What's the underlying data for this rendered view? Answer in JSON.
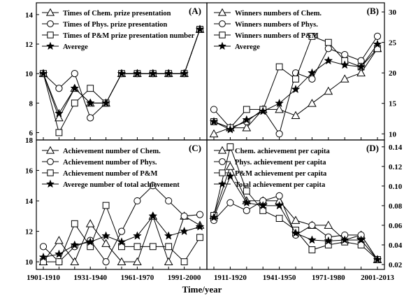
{
  "xlabel": "Time/year",
  "chart_data": [
    {
      "type": "line",
      "panel": "(A)",
      "x": [
        1,
        2,
        3,
        4,
        5,
        6,
        7,
        8,
        9,
        10,
        11
      ],
      "ylim": [
        5.5,
        14.8
      ],
      "yticks": [
        6,
        8,
        10,
        12,
        14
      ],
      "y_axis_side": "left",
      "xticks": [],
      "series": [
        {
          "name": "Times of Chem. prize presentation",
          "marker": "triangle",
          "values": [
            10,
            7,
            9,
            8,
            8,
            10,
            10,
            10,
            10,
            10,
            13
          ]
        },
        {
          "name": "Times of Phys. prize presentation",
          "marker": "circle",
          "values": [
            10,
            9,
            10,
            7,
            8,
            10,
            10,
            10,
            10,
            10,
            13
          ]
        },
        {
          "name": "Times of P&M prize presentation number",
          "marker": "square",
          "values": [
            10,
            6,
            8,
            9,
            8,
            10,
            10,
            10,
            10,
            10,
            13
          ]
        },
        {
          "name": "Averege",
          "marker": "star",
          "values": [
            10,
            7.3,
            9,
            8,
            8,
            10,
            10,
            10,
            10,
            10,
            13
          ]
        }
      ]
    },
    {
      "type": "line",
      "panel": "(B)",
      "x": [
        1,
        2,
        3,
        4,
        5,
        6,
        7,
        8,
        9,
        10,
        11
      ],
      "ylim": [
        9,
        31.5
      ],
      "yticks": [
        10,
        15,
        20,
        25,
        30
      ],
      "y_axis_side": "right",
      "xticks": [],
      "series": [
        {
          "name": "Winners numbers of Chem.",
          "marker": "triangle",
          "values": [
            10,
            11,
            11,
            14,
            14,
            13,
            15,
            17,
            19,
            20,
            24
          ]
        },
        {
          "name": "Winners numbers of Phys.",
          "marker": "circle",
          "values": [
            14,
            11,
            12,
            14,
            10,
            20,
            19,
            24,
            23,
            22,
            26
          ]
        },
        {
          "name": "Winners numbers of P&M",
          "marker": "square",
          "values": [
            12,
            11,
            14,
            14,
            21,
            19,
            26,
            25,
            22,
            21,
            24
          ]
        },
        {
          "name": "Averege",
          "marker": "star",
          "values": [
            12,
            10.7,
            12.3,
            13.7,
            15,
            17.3,
            20,
            22,
            21.3,
            21,
            24.7
          ]
        }
      ]
    },
    {
      "type": "line",
      "panel": "(C)",
      "x": [
        1,
        2,
        3,
        4,
        5,
        6,
        7,
        8,
        9,
        10,
        11
      ],
      "ylim": [
        9.5,
        18
      ],
      "yticks": [
        10,
        12,
        14,
        16,
        18
      ],
      "y_axis_side": "left",
      "xticks": [
        {
          "x": 1,
          "label": "1901-1910"
        },
        {
          "x": 4,
          "label": "1931-1940"
        },
        {
          "x": 7,
          "label": "1961-1970"
        },
        {
          "x": 10,
          "label": "1991-2000"
        }
      ],
      "series": [
        {
          "name": "Achievement number of Chem.",
          "marker": "triangle",
          "values": [
            10,
            11.4,
            10,
            12.5,
            11.2,
            10,
            10,
            13,
            10,
            13,
            12.4
          ]
        },
        {
          "name": "Achievement number of Phys.",
          "marker": "circle",
          "values": [
            11,
            10,
            11,
            11.4,
            10,
            12,
            14,
            15,
            14,
            13,
            13.1
          ]
        },
        {
          "name": "Achievement number of P&M",
          "marker": "square",
          "values": [
            10,
            10,
            12.5,
            11,
            13.7,
            11,
            11,
            11,
            11,
            10,
            11.6
          ]
        },
        {
          "name": "Averege number of total achievement",
          "marker": "star",
          "values": [
            10.3,
            10.5,
            11.1,
            11.3,
            11.7,
            11.3,
            11.7,
            13,
            11.7,
            12,
            12.3
          ]
        }
      ]
    },
    {
      "type": "line",
      "panel": "(D)",
      "x": [
        1,
        2,
        3,
        4,
        5,
        6,
        7,
        8,
        9,
        10,
        11
      ],
      "ylim": [
        0.015,
        0.147
      ],
      "yticks": [
        0.02,
        0.04,
        0.06,
        0.08,
        0.1,
        0.12,
        0.14
      ],
      "ytick_labels": [
        "0.02",
        "0.04",
        "0.06",
        "0.08",
        "0.10",
        "0.12",
        "0.14"
      ],
      "y_axis_side": "right",
      "xticks": [
        {
          "x": 2,
          "label": "1911-1920"
        },
        {
          "x": 5,
          "label": "1941-1950"
        },
        {
          "x": 8,
          "label": "1971-1980"
        },
        {
          "x": 11,
          "label": "2001-2013"
        }
      ],
      "series": [
        {
          "name": "Chem. achievement per capita",
          "marker": "triangle",
          "values": [
            0.07,
            0.12,
            0.085,
            0.085,
            0.085,
            0.065,
            0.06,
            0.06,
            0.045,
            0.05,
            0.025
          ]
        },
        {
          "name": "Phys. achievement per capita",
          "marker": "circle",
          "values": [
            0.065,
            0.083,
            0.075,
            0.085,
            0.09,
            0.05,
            0.06,
            0.048,
            0.05,
            0.05,
            0.025
          ]
        },
        {
          "name": "P&M achievement per capita",
          "marker": "square",
          "values": [
            0.07,
            0.14,
            0.095,
            0.075,
            0.067,
            0.055,
            0.035,
            0.04,
            0.043,
            0.04,
            0.025
          ]
        },
        {
          "name": "Total achievement per capita",
          "marker": "star",
          "values": [
            0.068,
            0.11,
            0.083,
            0.08,
            0.08,
            0.052,
            0.045,
            0.044,
            0.045,
            0.045,
            0.025
          ]
        }
      ]
    }
  ]
}
